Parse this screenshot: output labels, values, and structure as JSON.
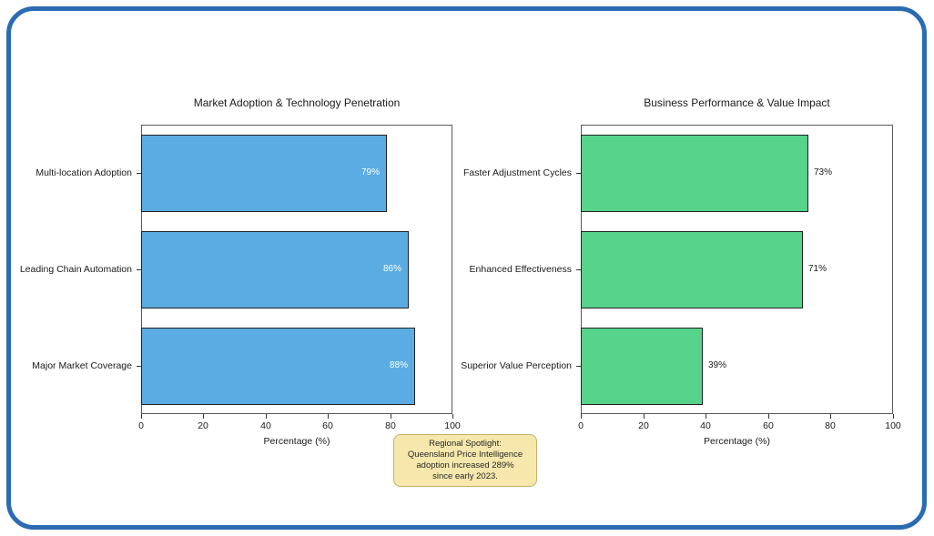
{
  "frame": {
    "border_color": "#2A6BB2",
    "background": "#FFFFFF"
  },
  "chart_data": [
    {
      "type": "bar",
      "orientation": "horizontal",
      "title": "Market Adoption & Technology Penetration",
      "categories": [
        "Multi-location Adoption",
        "Leading Chain Automation",
        "Major Market Coverage"
      ],
      "values": [
        79,
        86,
        88
      ],
      "value_labels": [
        "79%",
        "86%",
        "88%"
      ],
      "bar_color": "#5BACE2",
      "bar_edge_color": "#222222",
      "value_label_position": "inside",
      "value_label_color": "#FFFFFF",
      "xlabel": "Percentage (%)",
      "xlim": [
        0,
        100
      ],
      "xticks": [
        0,
        20,
        40,
        60,
        80,
        100
      ],
      "grid": false,
      "legend": "none"
    },
    {
      "type": "bar",
      "orientation": "horizontal",
      "title": "Business Performance & Value Impact",
      "categories": [
        "Faster Adjustment Cycles",
        "Enhanced Effectiveness",
        "Superior Value Perception"
      ],
      "values": [
        73,
        71,
        39
      ],
      "value_labels": [
        "73%",
        "71%",
        "39%"
      ],
      "bar_color": "#56D28B",
      "bar_edge_color": "#222222",
      "value_label_position": "outside",
      "value_label_color": "#1a1a1a",
      "xlabel": "Percentage (%)",
      "xlim": [
        0,
        100
      ],
      "xticks": [
        0,
        20,
        40,
        60,
        80,
        100
      ],
      "grid": false,
      "legend": "none"
    }
  ],
  "annotation": {
    "text": "Regional Spotlight:\nQueensland Price Intelligence\nadoption increased 289%\nsince early 2023.",
    "background": "#F6E8AC",
    "border_color": "#C2B266",
    "text_color": "#262626"
  }
}
